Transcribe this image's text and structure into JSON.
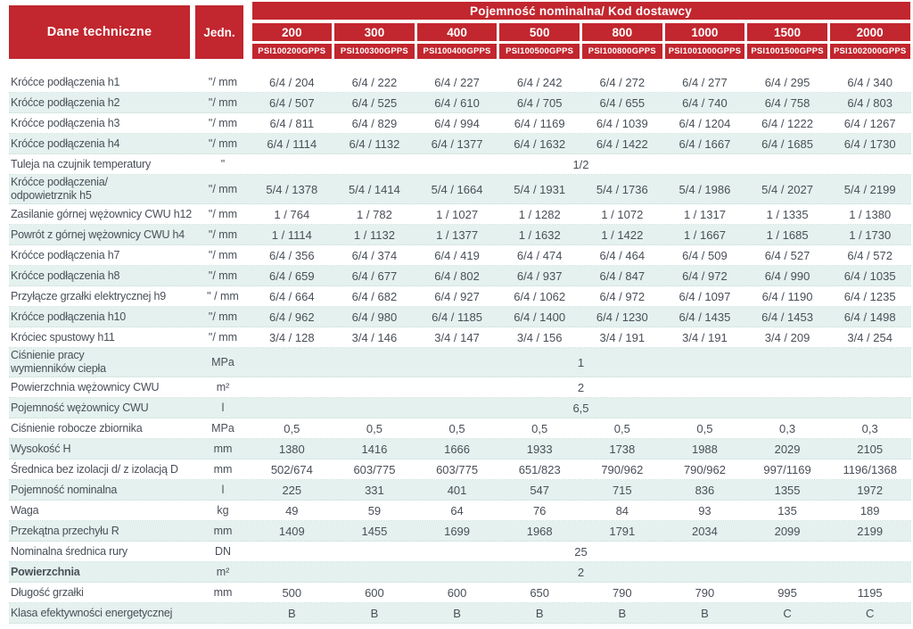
{
  "colors": {
    "red": "#C2262E",
    "stripe": "#E4F1EE",
    "text": "#494F58",
    "dotted_line": "#C9DEDA"
  },
  "header": {
    "col1": "Dane techniczne",
    "col2": "Jedn.",
    "banner": "Pojemność nominalna/ Kod dostawcy",
    "columns": [
      {
        "size": "200",
        "code": "PSI100200GPPS"
      },
      {
        "size": "300",
        "code": "PSI100300GPPS"
      },
      {
        "size": "400",
        "code": "PSI100400GPPS"
      },
      {
        "size": "500",
        "code": "PSI100500GPPS"
      },
      {
        "size": "800",
        "code": "PSI100800GPPS"
      },
      {
        "size": "1000",
        "code": "PSI1001000GPPS"
      },
      {
        "size": "1500",
        "code": "PSI1001500GPPS"
      },
      {
        "size": "2000",
        "code": "PSI1002000GPPS"
      }
    ]
  },
  "rows": [
    {
      "label": "Króćce podłączenia h1",
      "unit": "\"/ mm",
      "values": [
        "6/4 / 204",
        "6/4 / 222",
        "6/4 / 227",
        "6/4 / 242",
        "6/4 / 272",
        "6/4 / 277",
        "6/4 / 295",
        "6/4 / 340"
      ]
    },
    {
      "label": "Króćce podłączenia h2",
      "unit": "\"/ mm",
      "values": [
        "6/4 / 507",
        "6/4 / 525",
        "6/4 / 610",
        "6/4 / 705",
        "6/4 / 655",
        "6/4 / 740",
        "6/4 / 758",
        "6/4 / 803"
      ]
    },
    {
      "label": "Króćce podłączenia h3",
      "unit": "\"/ mm",
      "values": [
        "6/4 / 811",
        "6/4 / 829",
        "6/4 / 994",
        "6/4 / 1169",
        "6/4 / 1039",
        "6/4 / 1204",
        "6/4 / 1222",
        "6/4 / 1267"
      ]
    },
    {
      "label": "Króćce podłączenia h4",
      "unit": "\"/ mm",
      "values": [
        "6/4 / 1114",
        "6/4 / 1132",
        "6/4 / 1377",
        "6/4 / 1632",
        "6/4 / 1422",
        "6/4 / 1667",
        "6/4 / 1685",
        "6/4 / 1730"
      ]
    },
    {
      "label": "Tuleja na czujnik temperatury",
      "unit": "\"",
      "span_value": "1/2"
    },
    {
      "label": "Króćce podłączenia/\nodpowietrznik h5",
      "unit": "\"/ mm",
      "values": [
        "5/4 / 1378",
        "5/4 / 1414",
        "5/4 / 1664",
        "5/4 / 1931",
        "5/4 / 1736",
        "5/4 / 1986",
        "5/4 / 2027",
        "5/4 / 2199"
      ]
    },
    {
      "label": "Zasilanie górnej wężownicy CWU h12",
      "unit": "\"/ mm",
      "values": [
        "1 / 764",
        "1 / 782",
        "1 / 1027",
        "1 / 1282",
        "1 / 1072",
        "1 / 1317",
        "1 / 1335",
        "1 / 1380"
      ]
    },
    {
      "label": "Powrót z górnej wężownicy CWU h4",
      "unit": "\"/ mm",
      "values": [
        "1 / 1114",
        "1 / 1132",
        "1 / 1377",
        "1 / 1632",
        "1 / 1422",
        "1 / 1667",
        "1 / 1685",
        "1 / 1730"
      ]
    },
    {
      "label": "Króćce podłączenia h7",
      "unit": "\"/ mm",
      "values": [
        "6/4 / 356",
        "6/4 / 374",
        "6/4 / 419",
        "6/4 / 474",
        "6/4 / 464",
        "6/4 / 509",
        "6/4 / 527",
        "6/4 / 572"
      ]
    },
    {
      "label": "Króćce podłączenia h8",
      "unit": "\"/ mm",
      "values": [
        "6/4 / 659",
        "6/4 / 677",
        "6/4 / 802",
        "6/4 / 937",
        "6/4 / 847",
        "6/4 / 972",
        "6/4 / 990",
        "6/4 / 1035"
      ]
    },
    {
      "label": "Przyłącze grzałki elektrycznej h9",
      "unit": "\" / mm",
      "values": [
        "6/4 / 664",
        "6/4 / 682",
        "6/4 / 927",
        "6/4 / 1062",
        "6/4 / 972",
        "6/4 / 1097",
        "6/4 / 1190",
        "6/4 / 1235"
      ]
    },
    {
      "label": "Króćce podłączenia h10",
      "unit": "\"/ mm",
      "values": [
        "6/4 / 962",
        "6/4 / 980",
        "6/4 / 1185",
        "6/4 / 1400",
        "6/4 / 1230",
        "6/4 / 1435",
        "6/4 / 1453",
        "6/4 / 1498"
      ]
    },
    {
      "label": "Króciec spustowy h11",
      "unit": "\"/ mm",
      "values": [
        "3/4 / 128",
        "3/4 / 146",
        "3/4 / 147",
        "3/4 / 156",
        "3/4 / 191",
        "3/4 / 191",
        "3/4 / 209",
        "3/4 / 254"
      ]
    },
    {
      "label": "Ciśnienie pracy\nwymienników ciepła",
      "unit": "MPa",
      "span_value": "1"
    },
    {
      "label": "Powierzchnia wężownicy CWU",
      "unit": "m²",
      "span_value": "2"
    },
    {
      "label": "Pojemność wężownicy CWU",
      "unit": "l",
      "span_value": "6,5"
    },
    {
      "label": "Ciśnienie robocze zbiornika",
      "unit": "MPa",
      "values": [
        "0,5",
        "0,5",
        "0,5",
        "0,5",
        "0,5",
        "0,5",
        "0,3",
        "0,3"
      ]
    },
    {
      "label": "Wysokość H",
      "unit": "mm",
      "values": [
        "1380",
        "1416",
        "1666",
        "1933",
        "1738",
        "1988",
        "2029",
        "2105"
      ]
    },
    {
      "label": "Średnica bez izolacji d/ z izolacją D",
      "unit": "mm",
      "values": [
        "502/674",
        "603/775",
        "603/775",
        "651/823",
        "790/962",
        "790/962",
        "997/1169",
        "1196/1368"
      ]
    },
    {
      "label": "Pojemność nominalna",
      "unit": "l",
      "values": [
        "225",
        "331",
        "401",
        "547",
        "715",
        "836",
        "1355",
        "1972"
      ]
    },
    {
      "label": "Waga",
      "unit": "kg",
      "values": [
        "49",
        "59",
        "64",
        "76",
        "84",
        "93",
        "135",
        "189"
      ]
    },
    {
      "label": "Przekątna przechyłu R",
      "unit": "mm",
      "values": [
        "1409",
        "1455",
        "1699",
        "1968",
        "1791",
        "2034",
        "2099",
        "2199"
      ]
    },
    {
      "label": "Nominalna średnica rury",
      "unit": "DN",
      "span_value": "25"
    },
    {
      "label": "Powierzchnia",
      "unit": "m²",
      "span_value": "2",
      "bold": true
    },
    {
      "label": "Długość grzałki",
      "unit": "mm",
      "values": [
        "500",
        "600",
        "600",
        "650",
        "790",
        "790",
        "995",
        "1195"
      ]
    },
    {
      "label": "Klasa efektywności energetycznej",
      "unit": "",
      "values": [
        "B",
        "B",
        "B",
        "B",
        "B",
        "B",
        "C",
        "C"
      ]
    }
  ]
}
